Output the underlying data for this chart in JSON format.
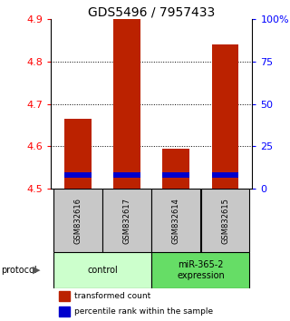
{
  "title": "GDS5496 / 7957433",
  "samples": [
    "GSM832616",
    "GSM832617",
    "GSM832614",
    "GSM832615"
  ],
  "red_values": [
    4.665,
    4.9,
    4.595,
    4.84
  ],
  "blue_values": [
    4.527,
    4.527,
    4.527,
    4.527
  ],
  "ymin": 4.5,
  "ymax": 4.9,
  "yticks_left": [
    4.5,
    4.6,
    4.7,
    4.8,
    4.9
  ],
  "yticks_right": [
    0,
    25,
    50,
    75,
    100
  ],
  "bar_width": 0.55,
  "red_color": "#bb2200",
  "blue_color": "#0000cc",
  "groups": [
    {
      "label": "control",
      "samples": [
        0,
        1
      ],
      "color": "#ccffcc"
    },
    {
      "label": "miR-365-2\nexpression",
      "samples": [
        2,
        3
      ],
      "color": "#66dd66"
    }
  ],
  "protocol_label": "protocol",
  "legend_red": "transformed count",
  "legend_blue": "percentile rank within the sample",
  "sample_box_color": "#c8c8c8",
  "background_color": "#ffffff",
  "title_fontsize": 10,
  "tick_fontsize": 8,
  "label_fontsize": 7
}
